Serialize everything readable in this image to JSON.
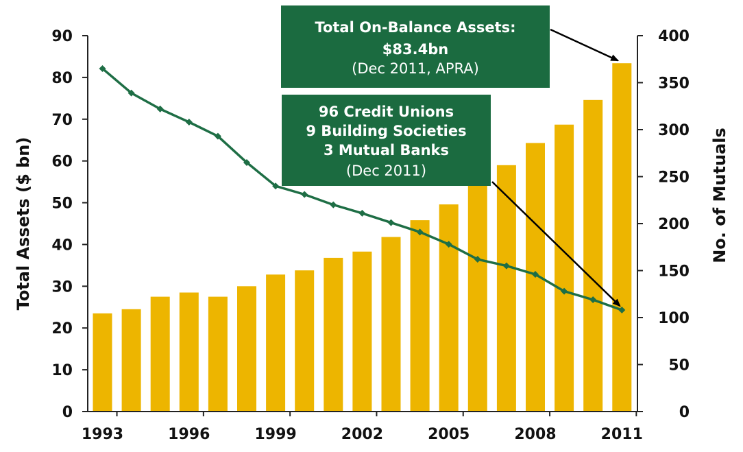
{
  "colors": {
    "bar": "#EDB500",
    "line": "#1E6E45",
    "callout_bg": "#1B6B40",
    "text": "#111111"
  },
  "chart_data": {
    "type": "bar",
    "years": [
      1993,
      1994,
      1995,
      1996,
      1997,
      1998,
      1999,
      2000,
      2001,
      2002,
      2003,
      2004,
      2005,
      2006,
      2007,
      2008,
      2009,
      2010,
      2011
    ],
    "x_tick_labels": [
      "1993",
      "1996",
      "1999",
      "2002",
      "2005",
      "2008",
      "2011"
    ],
    "x_tick_years": [
      1993,
      1996,
      1999,
      2002,
      2005,
      2008,
      2011
    ],
    "series": [
      {
        "type": "bar",
        "axis": "left",
        "values": [
          23.5,
          24.5,
          27.5,
          28.5,
          27.5,
          30,
          32.8,
          33.8,
          36.8,
          38.3,
          41.8,
          45.8,
          49.6,
          55.5,
          59,
          64.3,
          68.7,
          74.6,
          83.4
        ]
      },
      {
        "type": "line",
        "axis": "right",
        "values": [
          365,
          339,
          322,
          308,
          293,
          265,
          240,
          231,
          220,
          211,
          201,
          191,
          178,
          162,
          155,
          146,
          128,
          119,
          108
        ]
      }
    ],
    "y_left": {
      "label": "Total Assets ($ bn)",
      "min": 0,
      "max": 90,
      "ticks": [
        "0",
        "10",
        "20",
        "30",
        "40",
        "50",
        "60",
        "70",
        "80",
        "90"
      ]
    },
    "y_right": {
      "label": "No. of Mutuals",
      "min": 0,
      "max": 400,
      "ticks": [
        "0",
        "50",
        "100",
        "150",
        "200",
        "250",
        "300",
        "350",
        "400"
      ]
    },
    "annotations": [
      {
        "lines": [
          "Total On-Balance Assets:",
          "$83.4bn",
          "(Dec 2011, APRA)"
        ],
        "points_to": "last bar"
      },
      {
        "lines": [
          "96 Credit Unions",
          "9 Building Societies",
          "3 Mutual Banks",
          "(Dec 2011)"
        ],
        "points_to": "last line point"
      }
    ]
  }
}
